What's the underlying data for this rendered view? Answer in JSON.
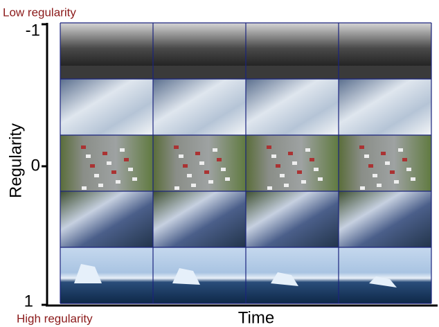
{
  "labels": {
    "top": "Low regularity",
    "bottom": "High regularity",
    "y_axis": "Regularity",
    "x_axis": "Time"
  },
  "ticks": [
    "-1",
    "0",
    "1"
  ]
}
